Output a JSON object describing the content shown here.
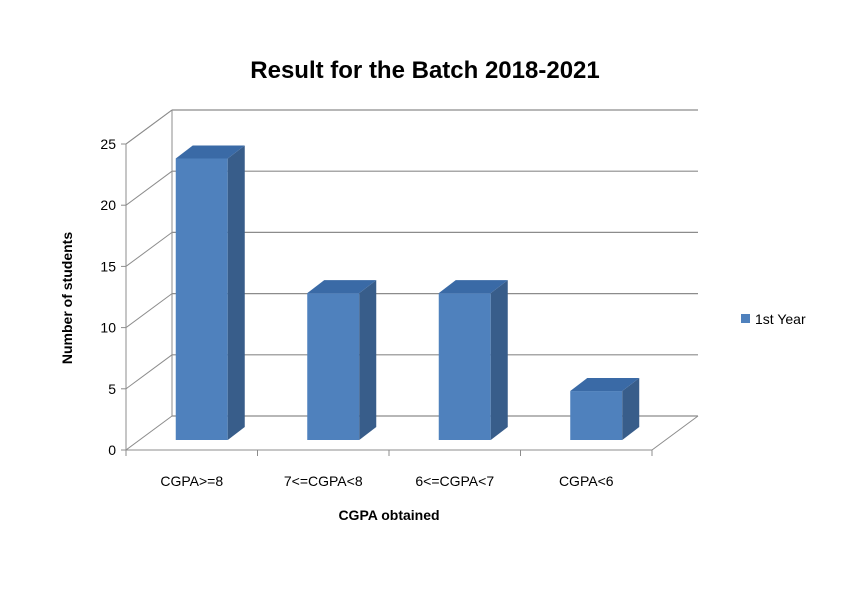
{
  "chart_data": {
    "type": "bar",
    "title": "Result for the Batch 2018-2021",
    "xlabel": "CGPA obtained",
    "ylabel": "Number of students",
    "categories": [
      "CGPA>=8",
      "7<=CGPA<8",
      "6<=CGPA<7",
      "CGPA<6"
    ],
    "series": [
      {
        "name": "1st Year",
        "values": [
          23,
          12,
          12,
          4
        ]
      }
    ],
    "ylim": [
      0,
      25
    ],
    "yticks": [
      "0",
      "5",
      "10",
      "15",
      "20",
      "25"
    ],
    "grid": true,
    "legend_position": "right",
    "three_d": true,
    "colors": {
      "bar_front": "#4f81bd",
      "bar_side": "#385d8a",
      "bar_top": "#3a6aa6",
      "gridline": "#8c8c8c",
      "axis": "#8c8c8c"
    }
  }
}
